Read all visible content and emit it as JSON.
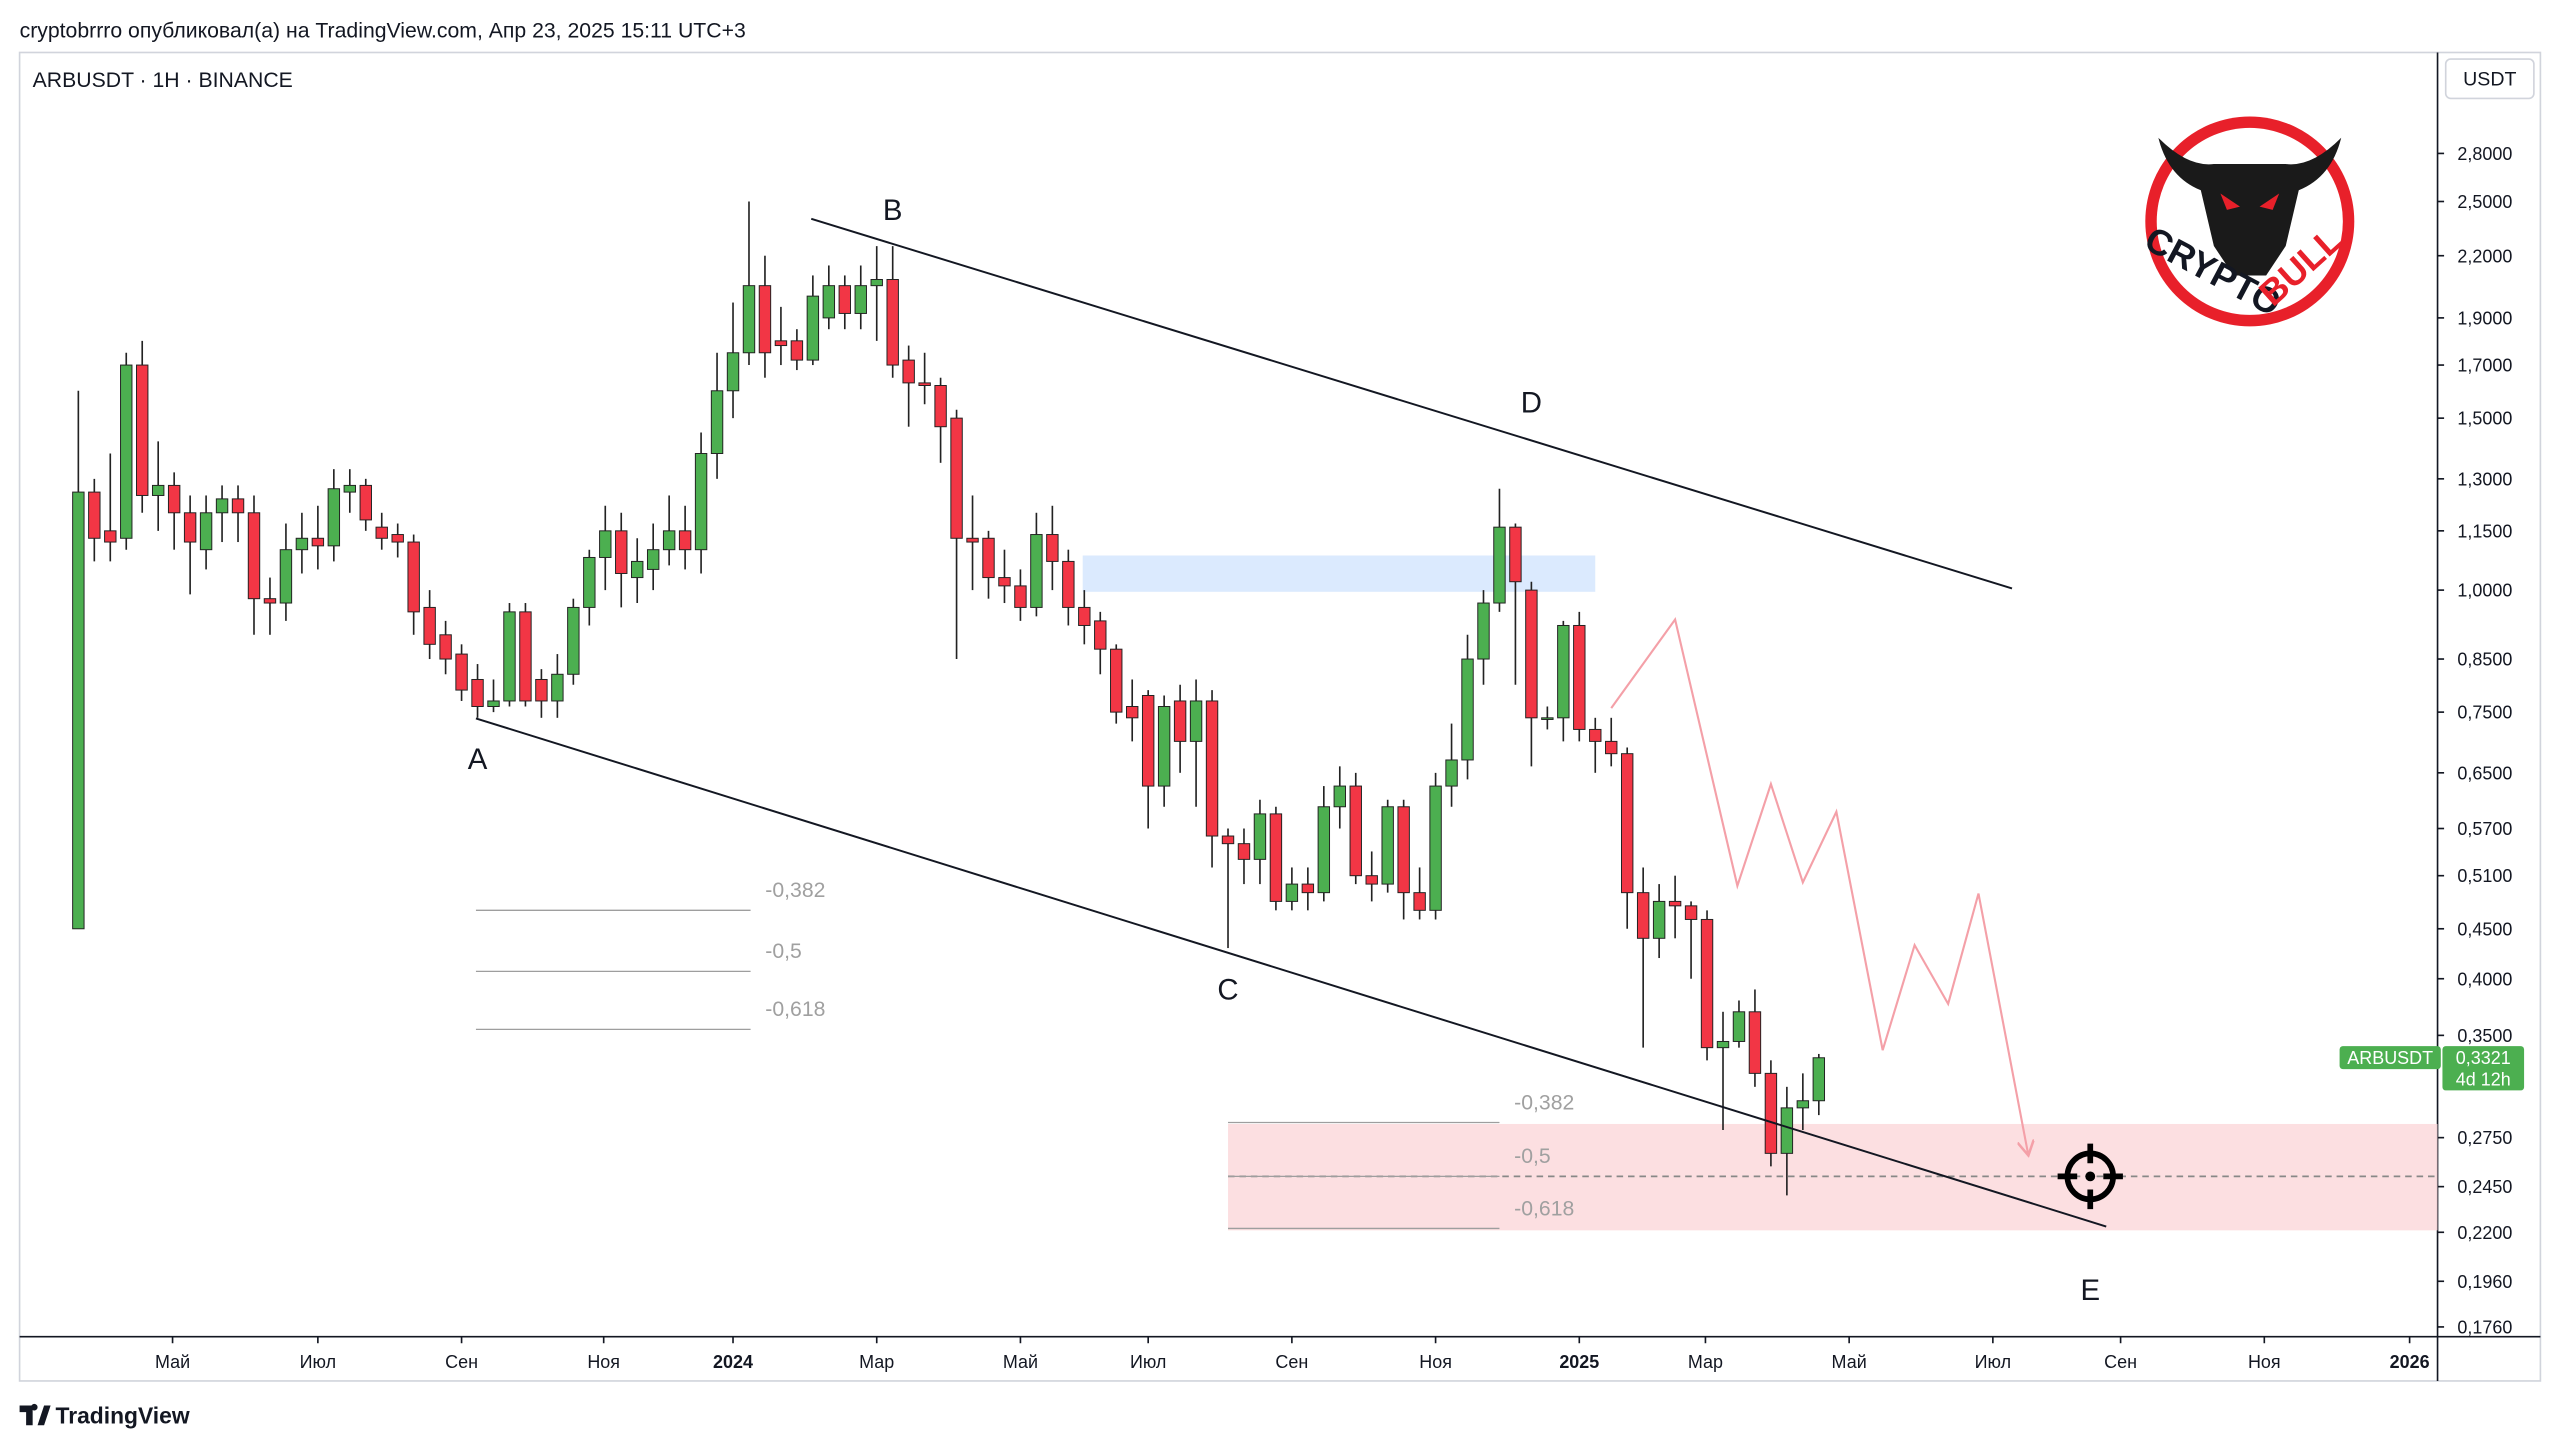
{
  "header": {
    "published": "cryptobrrro опубликовал(а) на TradingView.com, Апр 23, 2025 15:11 UTC+3",
    "symbol": "ARBUSDT · 1H · BINANCE",
    "currency": "USDT",
    "brand": "TradingView"
  },
  "logo": {
    "word1": "CRYPTO",
    "word2": "BULL"
  },
  "chart_data": {
    "type": "candlestick",
    "log_scale": true,
    "up_color": "#4caf50",
    "down_color": "#f23645",
    "ylim": [
      0.172,
      3.58
    ],
    "yticks": [
      {
        "value": 2.8,
        "label": "2,8000"
      },
      {
        "value": 2.5,
        "label": "2,5000"
      },
      {
        "value": 2.2,
        "label": "2,2000"
      },
      {
        "value": 1.9,
        "label": "1,9000"
      },
      {
        "value": 1.7,
        "label": "1,7000"
      },
      {
        "value": 1.5,
        "label": "1,5000"
      },
      {
        "value": 1.3,
        "label": "1,3000"
      },
      {
        "value": 1.15,
        "label": "1,1500"
      },
      {
        "value": 1.0,
        "label": "1,0000"
      },
      {
        "value": 0.85,
        "label": "0,8500"
      },
      {
        "value": 0.75,
        "label": "0,7500"
      },
      {
        "value": 0.65,
        "label": "0,6500"
      },
      {
        "value": 0.57,
        "label": "0,5700"
      },
      {
        "value": 0.51,
        "label": "0,5100"
      },
      {
        "value": 0.45,
        "label": "0,4500"
      },
      {
        "value": 0.4,
        "label": "0,4000"
      },
      {
        "value": 0.35,
        "label": "0,3500"
      },
      {
        "value": 0.275,
        "label": "0,2750"
      },
      {
        "value": 0.245,
        "label": "0,2450"
      },
      {
        "value": 0.22,
        "label": "0,2200"
      },
      {
        "value": 0.196,
        "label": "0,1960"
      },
      {
        "value": 0.176,
        "label": "0,1760"
      }
    ],
    "xlim": [
      -3.68,
      147.75
    ],
    "xticks": [
      {
        "value": 5.9,
        "label": "Май"
      },
      {
        "value": 15.0,
        "label": "Июл"
      },
      {
        "value": 24.0,
        "label": "Сен"
      },
      {
        "value": 32.9,
        "label": "Ноя"
      },
      {
        "value": 41.0,
        "label": "2024"
      },
      {
        "value": 50.0,
        "label": "Мар"
      },
      {
        "value": 59.0,
        "label": "Май"
      },
      {
        "value": 67.0,
        "label": "Июл"
      },
      {
        "value": 76.0,
        "label": "Сен"
      },
      {
        "value": 85.0,
        "label": "Ноя"
      },
      {
        "value": 94.0,
        "label": "2025"
      },
      {
        "value": 101.9,
        "label": "Мар"
      },
      {
        "value": 110.9,
        "label": "Май"
      },
      {
        "value": 119.9,
        "label": "Июл"
      },
      {
        "value": 127.9,
        "label": "Сен"
      },
      {
        "value": 136.9,
        "label": "Ноя"
      },
      {
        "value": 146.0,
        "label": "2026"
      }
    ],
    "candles": [
      [
        0.45,
        1.6,
        0.45,
        1.26
      ],
      [
        1.26,
        1.3,
        1.07,
        1.13
      ],
      [
        1.15,
        1.38,
        1.07,
        1.12
      ],
      [
        1.13,
        1.75,
        1.1,
        1.7
      ],
      [
        1.7,
        1.8,
        1.2,
        1.25
      ],
      [
        1.25,
        1.42,
        1.15,
        1.28
      ],
      [
        1.28,
        1.32,
        1.1,
        1.2
      ],
      [
        1.2,
        1.25,
        0.99,
        1.12
      ],
      [
        1.1,
        1.25,
        1.05,
        1.2
      ],
      [
        1.2,
        1.28,
        1.12,
        1.24
      ],
      [
        1.24,
        1.28,
        1.12,
        1.2
      ],
      [
        1.2,
        1.25,
        0.9,
        0.98
      ],
      [
        0.98,
        1.03,
        0.9,
        0.97
      ],
      [
        0.97,
        1.17,
        0.93,
        1.1
      ],
      [
        1.1,
        1.2,
        1.04,
        1.13
      ],
      [
        1.13,
        1.22,
        1.05,
        1.11
      ],
      [
        1.11,
        1.33,
        1.07,
        1.27
      ],
      [
        1.26,
        1.33,
        1.2,
        1.28
      ],
      [
        1.28,
        1.3,
        1.15,
        1.18
      ],
      [
        1.16,
        1.2,
        1.1,
        1.13
      ],
      [
        1.14,
        1.17,
        1.08,
        1.12
      ],
      [
        1.12,
        1.14,
        0.9,
        0.95
      ],
      [
        0.96,
        1.0,
        0.85,
        0.88
      ],
      [
        0.9,
        0.93,
        0.82,
        0.85
      ],
      [
        0.86,
        0.88,
        0.77,
        0.79
      ],
      [
        0.81,
        0.84,
        0.74,
        0.76
      ],
      [
        0.76,
        0.81,
        0.75,
        0.77
      ],
      [
        0.77,
        0.97,
        0.76,
        0.95
      ],
      [
        0.95,
        0.97,
        0.76,
        0.77
      ],
      [
        0.81,
        0.83,
        0.74,
        0.77
      ],
      [
        0.77,
        0.86,
        0.74,
        0.82
      ],
      [
        0.82,
        0.98,
        0.8,
        0.96
      ],
      [
        0.96,
        1.1,
        0.92,
        1.08
      ],
      [
        1.08,
        1.22,
        1.0,
        1.15
      ],
      [
        1.15,
        1.2,
        0.96,
        1.04
      ],
      [
        1.03,
        1.13,
        0.97,
        1.07
      ],
      [
        1.05,
        1.17,
        1.0,
        1.1
      ],
      [
        1.1,
        1.25,
        1.06,
        1.15
      ],
      [
        1.15,
        1.22,
        1.05,
        1.1
      ],
      [
        1.1,
        1.45,
        1.04,
        1.38
      ],
      [
        1.38,
        1.75,
        1.3,
        1.6
      ],
      [
        1.6,
        1.97,
        1.5,
        1.75
      ],
      [
        1.75,
        2.5,
        1.7,
        2.05
      ],
      [
        2.05,
        2.2,
        1.65,
        1.75
      ],
      [
        1.8,
        1.95,
        1.7,
        1.78
      ],
      [
        1.8,
        1.85,
        1.68,
        1.72
      ],
      [
        1.72,
        2.1,
        1.7,
        2.0
      ],
      [
        1.9,
        2.15,
        1.85,
        2.05
      ],
      [
        2.05,
        2.1,
        1.85,
        1.92
      ],
      [
        1.92,
        2.15,
        1.85,
        2.05
      ],
      [
        2.05,
        2.25,
        1.8,
        2.08
      ],
      [
        2.08,
        2.25,
        1.65,
        1.7
      ],
      [
        1.72,
        1.78,
        1.47,
        1.63
      ],
      [
        1.63,
        1.75,
        1.55,
        1.62
      ],
      [
        1.62,
        1.65,
        1.35,
        1.47
      ],
      [
        1.5,
        1.53,
        0.85,
        1.13
      ],
      [
        1.13,
        1.25,
        1.0,
        1.12
      ],
      [
        1.13,
        1.15,
        0.98,
        1.03
      ],
      [
        1.03,
        1.1,
        0.97,
        1.01
      ],
      [
        1.01,
        1.05,
        0.93,
        0.96
      ],
      [
        0.96,
        1.2,
        0.94,
        1.14
      ],
      [
        1.14,
        1.22,
        1.0,
        1.07
      ],
      [
        1.07,
        1.1,
        0.92,
        0.96
      ],
      [
        0.96,
        1.0,
        0.88,
        0.92
      ],
      [
        0.93,
        0.95,
        0.82,
        0.87
      ],
      [
        0.87,
        0.88,
        0.73,
        0.75
      ],
      [
        0.76,
        0.81,
        0.7,
        0.74
      ],
      [
        0.78,
        0.79,
        0.57,
        0.63
      ],
      [
        0.63,
        0.78,
        0.6,
        0.76
      ],
      [
        0.77,
        0.8,
        0.65,
        0.7
      ],
      [
        0.7,
        0.81,
        0.6,
        0.77
      ],
      [
        0.77,
        0.79,
        0.52,
        0.56
      ],
      [
        0.56,
        0.57,
        0.43,
        0.55
      ],
      [
        0.55,
        0.57,
        0.5,
        0.53
      ],
      [
        0.53,
        0.61,
        0.5,
        0.59
      ],
      [
        0.59,
        0.6,
        0.47,
        0.48
      ],
      [
        0.48,
        0.52,
        0.47,
        0.5
      ],
      [
        0.5,
        0.52,
        0.47,
        0.49
      ],
      [
        0.49,
        0.63,
        0.48,
        0.6
      ],
      [
        0.6,
        0.66,
        0.57,
        0.63
      ],
      [
        0.63,
        0.65,
        0.5,
        0.51
      ],
      [
        0.51,
        0.54,
        0.48,
        0.5
      ],
      [
        0.5,
        0.61,
        0.49,
        0.6
      ],
      [
        0.6,
        0.61,
        0.46,
        0.49
      ],
      [
        0.49,
        0.52,
        0.46,
        0.47
      ],
      [
        0.47,
        0.65,
        0.46,
        0.63
      ],
      [
        0.63,
        0.73,
        0.6,
        0.67
      ],
      [
        0.67,
        0.9,
        0.64,
        0.85
      ],
      [
        0.85,
        1.0,
        0.8,
        0.97
      ],
      [
        0.97,
        1.27,
        0.95,
        1.16
      ],
      [
        1.16,
        1.17,
        0.8,
        1.02
      ],
      [
        1.0,
        1.02,
        0.66,
        0.74
      ],
      [
        0.74,
        0.76,
        0.72,
        0.74
      ],
      [
        0.74,
        0.93,
        0.7,
        0.92
      ],
      [
        0.92,
        0.95,
        0.7,
        0.72
      ],
      [
        0.72,
        0.74,
        0.65,
        0.7
      ],
      [
        0.7,
        0.74,
        0.66,
        0.68
      ],
      [
        0.68,
        0.69,
        0.45,
        0.49
      ],
      [
        0.49,
        0.52,
        0.34,
        0.44
      ],
      [
        0.44,
        0.5,
        0.42,
        0.48
      ],
      [
        0.48,
        0.51,
        0.44,
        0.475
      ],
      [
        0.475,
        0.48,
        0.4,
        0.46
      ],
      [
        0.46,
        0.47,
        0.33,
        0.34
      ],
      [
        0.34,
        0.37,
        0.28,
        0.345
      ],
      [
        0.345,
        0.38,
        0.34,
        0.37
      ],
      [
        0.37,
        0.39,
        0.31,
        0.32
      ],
      [
        0.32,
        0.33,
        0.257,
        0.265
      ],
      [
        0.265,
        0.31,
        0.24,
        0.295
      ],
      [
        0.295,
        0.32,
        0.28,
        0.3
      ],
      [
        0.3,
        0.335,
        0.29,
        0.332
      ]
    ],
    "last_price": {
      "name": "ARBUSDT",
      "value": 0.3321,
      "label": "0,3321",
      "countdown": "4d 12h"
    },
    "trendlines": [
      {
        "x": [
          45.9,
          121.1
        ],
        "y": [
          2.4,
          1.004
        ]
      },
      {
        "x": [
          24.9,
          127.0
        ],
        "y": [
          0.739,
          0.223
        ]
      }
    ],
    "wave_labels": [
      {
        "text": "A",
        "x": 25.0,
        "y": 0.671
      },
      {
        "text": "B",
        "x": 51.0,
        "y": 2.45
      },
      {
        "text": "C",
        "x": 72.0,
        "y": 0.39
      },
      {
        "text": "D",
        "x": 91.0,
        "y": 1.555
      },
      {
        "text": "E",
        "x": 126.0,
        "y": 0.192
      }
    ],
    "blue_zone": {
      "x": [
        62.9,
        95.0
      ],
      "y": [
        1.085,
        0.996
      ],
      "color": "#dbeafe"
    },
    "target_zone": {
      "x": [
        72.0,
        147.75
      ],
      "y": [
        0.284,
        0.221
      ],
      "color": "#fbd9dc",
      "target": 0.251,
      "target_x": 126.0
    },
    "projection": {
      "color": "#f4a0a8",
      "x": [
        96.0,
        100.0,
        103.9,
        106.0,
        108.0,
        110.1,
        113.0,
        115.0,
        117.1,
        119.0,
        122.1
      ],
      "y": [
        0.757,
        0.933,
        0.498,
        0.633,
        0.502,
        0.593,
        0.338,
        0.433,
        0.377,
        0.489,
        0.265
      ]
    },
    "fib_sets": [
      {
        "x": [
          24.9,
          42.1
        ],
        "levels": [
          {
            "value": -0.382,
            "label": "-0,382",
            "price": 0.47
          },
          {
            "value": -0.5,
            "label": "-0,5",
            "price": 0.407
          },
          {
            "value": -0.618,
            "label": "-0,618",
            "price": 0.355
          }
        ]
      },
      {
        "x": [
          72.0,
          89.0
        ],
        "levels": [
          {
            "value": -0.382,
            "label": "-0,382",
            "price": 0.285
          },
          {
            "value": -0.5,
            "label": "-0,5",
            "price": 0.251
          },
          {
            "value": -0.618,
            "label": "-0,618",
            "price": 0.222
          }
        ]
      }
    ]
  }
}
